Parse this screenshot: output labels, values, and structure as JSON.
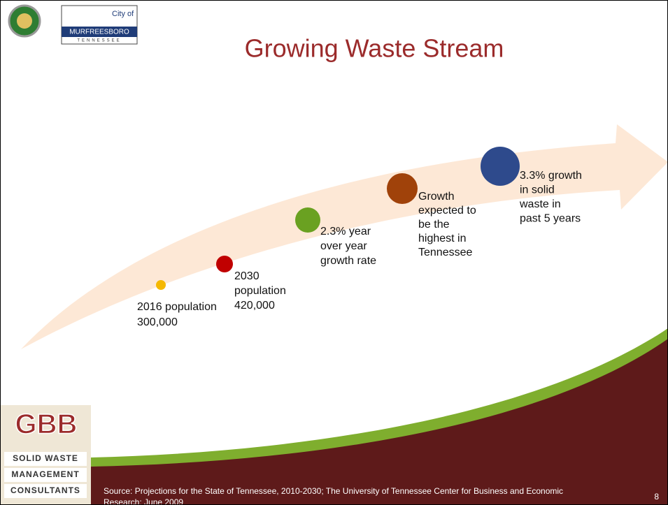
{
  "header": {
    "title": "Growing Waste Stream",
    "logo_city": {
      "top": "City of",
      "name": "MURFREESBORO",
      "state": "TENNESSEE"
    }
  },
  "items": [
    {
      "lines": [
        "2016 population",
        "300,000"
      ]
    },
    {
      "lines": [
        "2030",
        "population",
        "420,000"
      ]
    },
    {
      "lines": [
        "2.3% year",
        "over year",
        "growth rate"
      ]
    },
    {
      "lines": [
        "Growth",
        "expected to",
        "be the",
        "highest in",
        "Tennessee"
      ]
    },
    {
      "lines": [
        "3.3% growth",
        "in solid",
        "waste in",
        "past 5 years"
      ]
    }
  ],
  "footer": {
    "logo": {
      "mark": "GBB",
      "lines": [
        "SOLID WASTE",
        "MANAGEMENT",
        "CONSULTANTS"
      ]
    },
    "source_lines": [
      "Source: Projections for the State of Tennessee, 2010-2030; The University of Tennessee Center for Business and Economic",
      "Research; June 2009"
    ],
    "page_number": "8"
  }
}
